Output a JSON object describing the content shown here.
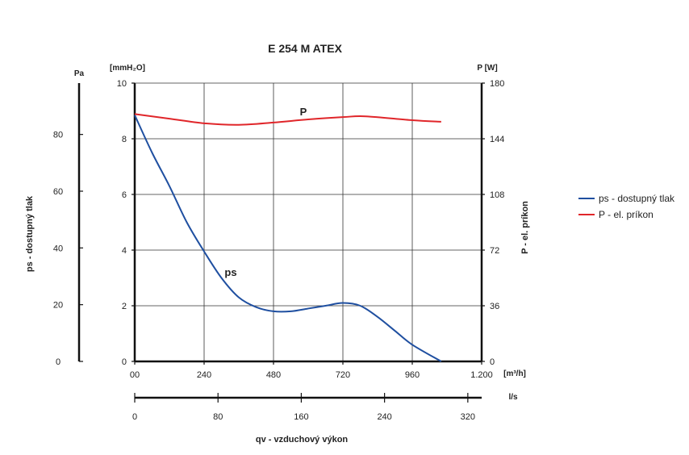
{
  "chart_data": {
    "type": "line",
    "title": "E 254 M ATEX",
    "x": {
      "label": "qv - vzduchový výkon",
      "unit": "[m³/h]",
      "range": [
        0,
        1200
      ],
      "tick_values": [
        0,
        240,
        480,
        720,
        960,
        1200
      ],
      "tick_labels": [
        "00",
        "240",
        "480",
        "720",
        "960",
        "1.200"
      ]
    },
    "x_secondary": {
      "unit": "l/s",
      "range": [
        0,
        333.3
      ],
      "ticks": [
        "0",
        "80",
        "160",
        "240",
        "320"
      ]
    },
    "y_left": {
      "unit": "[mmH₂O]",
      "range": [
        0,
        10
      ],
      "ticks": [
        "0",
        "2",
        "4",
        "6",
        "8",
        "10"
      ]
    },
    "y_pa": {
      "label": "ps - dostupný tlak",
      "unit": "Pa",
      "range": [
        0,
        98.1
      ],
      "ticks": [
        "0",
        "20",
        "40",
        "60",
        "80"
      ]
    },
    "y_right": {
      "label": "P - el. príkon",
      "unit": "P [W]",
      "range": [
        0,
        180
      ],
      "ticks": [
        "0",
        "36",
        "72",
        "108",
        "144",
        "180"
      ]
    },
    "series": [
      {
        "name": "ps - dostupný tlak",
        "label": "ps",
        "axis": "left",
        "color": "#1f4fa0",
        "x": [
          0,
          60,
          120,
          180,
          240,
          300,
          360,
          420,
          480,
          540,
          600,
          660,
          720,
          780,
          840,
          900,
          960,
          1060
        ],
        "y": [
          8.85,
          7.5,
          6.3,
          5.0,
          3.95,
          3.0,
          2.3,
          1.95,
          1.8,
          1.8,
          1.9,
          2.0,
          2.1,
          2.0,
          1.6,
          1.1,
          0.6,
          0.0
        ]
      },
      {
        "name": "P - el. príkon",
        "label": "P",
        "axis": "right",
        "color": "#e0262a",
        "x": [
          0,
          120,
          240,
          360,
          480,
          600,
          720,
          800,
          960,
          1060
        ],
        "y": [
          160,
          157,
          154,
          153,
          154.5,
          156.5,
          158,
          158.5,
          156,
          155
        ]
      }
    ],
    "grid": true,
    "legend_position": "right"
  }
}
